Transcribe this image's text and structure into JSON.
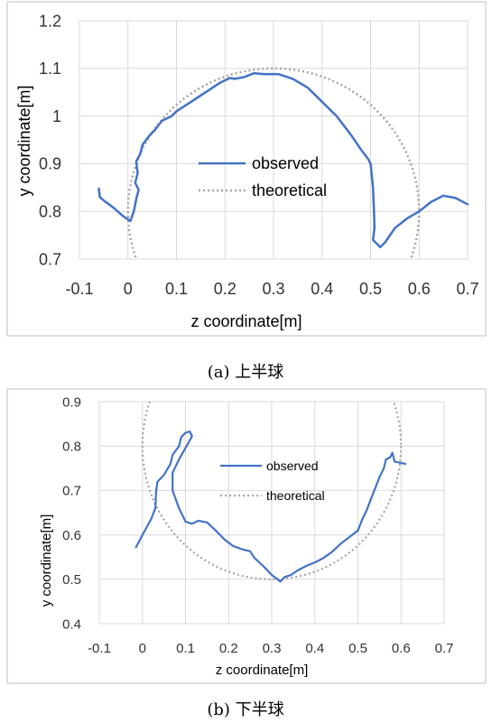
{
  "chart_data": [
    {
      "type": "line",
      "caption": "(a) 上半球",
      "xlabel": "z coordinate[m]",
      "ylabel": "y coordinate[m]",
      "xlim": [
        -0.1,
        0.7
      ],
      "ylim": [
        0.7,
        1.2
      ],
      "xticks": [
        "-0.1",
        "0",
        "0.1",
        "0.2",
        "0.3",
        "0.4",
        "0.5",
        "0.6",
        "0.7"
      ],
      "yticks": [
        "0.7",
        "0.8",
        "0.9",
        "1",
        "1.1",
        "1.2"
      ],
      "grid": true,
      "legend": "center",
      "series": [
        {
          "name": "observed",
          "color": "#4472C4",
          "style": "solid",
          "x": [
            -0.06,
            -0.058,
            -0.05,
            -0.03,
            -0.01,
            0.005,
            0.012,
            0.018,
            0.022,
            0.015,
            0.02,
            0.017,
            0.025,
            0.03,
            0.045,
            0.055,
            0.07,
            0.09,
            0.1,
            0.13,
            0.16,
            0.19,
            0.21,
            0.22,
            0.24,
            0.26,
            0.28,
            0.31,
            0.34,
            0.37,
            0.4,
            0.43,
            0.46,
            0.48,
            0.495,
            0.5,
            0.505,
            0.507,
            0.508,
            0.505,
            0.51,
            0.52,
            0.53,
            0.55,
            0.575,
            0.6,
            0.625,
            0.65,
            0.675,
            0.7
          ],
          "y": [
            0.848,
            0.83,
            0.823,
            0.808,
            0.79,
            0.78,
            0.8,
            0.83,
            0.845,
            0.86,
            0.88,
            0.905,
            0.92,
            0.94,
            0.96,
            0.97,
            0.99,
            1.0,
            1.01,
            1.03,
            1.05,
            1.07,
            1.08,
            1.078,
            1.082,
            1.09,
            1.088,
            1.088,
            1.078,
            1.06,
            1.03,
            1.0,
            0.96,
            0.93,
            0.91,
            0.9,
            0.85,
            0.8,
            0.765,
            0.74,
            0.735,
            0.725,
            0.735,
            0.765,
            0.785,
            0.8,
            0.82,
            0.833,
            0.828,
            0.815
          ]
        },
        {
          "name": "theoretical",
          "color": "#A5A5A5",
          "style": "dotted",
          "circle": {
            "cx": 0.3,
            "cy": 0.8,
            "r": 0.3
          }
        }
      ]
    },
    {
      "type": "line",
      "caption": "(b) 下半球",
      "xlabel": "z coordinate[m]",
      "ylabel": "y coordinate[m]",
      "xlim": [
        -0.1,
        0.7
      ],
      "ylim": [
        0.4,
        0.9
      ],
      "xticks": [
        "-0.1",
        "0",
        "0.1",
        "0.2",
        "0.3",
        "0.4",
        "0.5",
        "0.6",
        "0.7"
      ],
      "yticks": [
        "0.4",
        "0.5",
        "0.6",
        "0.7",
        "0.8",
        "0.9"
      ],
      "grid": true,
      "legend": "center-right",
      "series": [
        {
          "name": "observed",
          "color": "#4472C4",
          "style": "solid",
          "x": [
            -0.015,
            0.0,
            0.02,
            0.03,
            0.032,
            0.035,
            0.05,
            0.065,
            0.07,
            0.085,
            0.09,
            0.1,
            0.11,
            0.115,
            0.085,
            0.07,
            0.07,
            0.085,
            0.1,
            0.115,
            0.13,
            0.15,
            0.17,
            0.19,
            0.21,
            0.23,
            0.25,
            0.26,
            0.28,
            0.3,
            0.32,
            0.33,
            0.345,
            0.36,
            0.38,
            0.4,
            0.42,
            0.44,
            0.46,
            0.48,
            0.5,
            0.51,
            0.52,
            0.53,
            0.54,
            0.55,
            0.56,
            0.565,
            0.575,
            0.58,
            0.585,
            0.6,
            0.61
          ],
          "y": [
            0.572,
            0.6,
            0.635,
            0.66,
            0.7,
            0.72,
            0.735,
            0.76,
            0.78,
            0.8,
            0.82,
            0.83,
            0.833,
            0.822,
            0.77,
            0.74,
            0.7,
            0.66,
            0.63,
            0.625,
            0.632,
            0.628,
            0.61,
            0.59,
            0.575,
            0.568,
            0.563,
            0.548,
            0.53,
            0.51,
            0.495,
            0.505,
            0.51,
            0.52,
            0.53,
            0.538,
            0.548,
            0.562,
            0.58,
            0.595,
            0.61,
            0.635,
            0.655,
            0.68,
            0.705,
            0.73,
            0.75,
            0.77,
            0.775,
            0.785,
            0.765,
            0.762,
            0.76
          ]
        },
        {
          "name": "theoretical",
          "color": "#A5A5A5",
          "style": "dotted",
          "circle": {
            "cx": 0.3,
            "cy": 0.8,
            "r": 0.3
          }
        }
      ]
    }
  ]
}
